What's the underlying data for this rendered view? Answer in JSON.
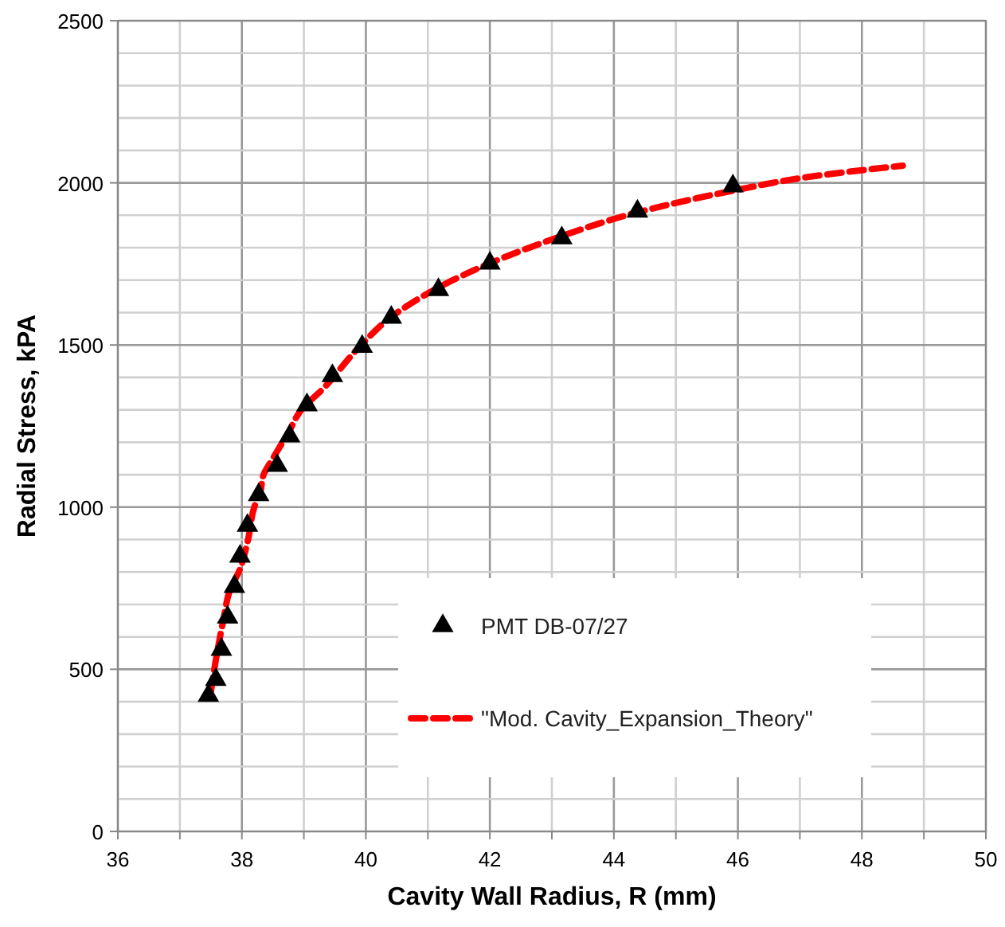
{
  "chart_data": {
    "type": "scatter",
    "xlabel": "Cavity Wall Radius, R (mm)",
    "ylabel": "Radial Stress, kPA",
    "xlim": [
      36,
      50
    ],
    "ylim": [
      0,
      2500
    ],
    "xticks": [
      36,
      {
        "value": 37,
        "label": null
      },
      38,
      {
        "value": 39,
        "label": null
      },
      40,
      {
        "value": 41,
        "label": null
      },
      42,
      {
        "value": 43,
        "label": null
      },
      44,
      {
        "value": 45,
        "label": null
      },
      46,
      {
        "value": 47,
        "label": null
      },
      48,
      {
        "value": 49,
        "label": null
      },
      50
    ],
    "yticks": [
      0,
      {
        "value": 100,
        "label": null
      },
      {
        "value": 200,
        "label": null
      },
      {
        "value": 300,
        "label": null
      },
      {
        "value": 400,
        "label": null
      },
      500,
      {
        "value": 600,
        "label": null
      },
      {
        "value": 700,
        "label": null
      },
      {
        "value": 800,
        "label": null
      },
      {
        "value": 900,
        "label": null
      },
      1000,
      {
        "value": 1100,
        "label": null
      },
      {
        "value": 1200,
        "label": null
      },
      {
        "value": 1300,
        "label": null
      },
      {
        "value": 1400,
        "label": null
      },
      1500,
      {
        "value": 1600,
        "label": null
      },
      {
        "value": 1700,
        "label": null
      },
      {
        "value": 1800,
        "label": null
      },
      {
        "value": 1900,
        "label": null
      },
      2000,
      {
        "value": 2100,
        "label": null
      },
      {
        "value": 2200,
        "label": null
      },
      {
        "value": 2300,
        "label": null
      },
      {
        "value": 2400,
        "label": null
      },
      2500
    ],
    "grid": true,
    "legend": "bottom right",
    "series": [
      {
        "name": "PMT DB-07/27",
        "type": "scatter",
        "marker": "triangle",
        "color": "#000000",
        "x": [
          37.46,
          37.58,
          37.67,
          37.77,
          37.88,
          37.97,
          38.09,
          38.27,
          38.57,
          38.77,
          39.05,
          39.46,
          39.94,
          40.41,
          41.17,
          42.0,
          43.16,
          44.38,
          45.92
        ],
        "values": [
          419,
          468,
          561,
          660,
          755,
          848,
          943,
          1038,
          1128,
          1219,
          1315,
          1405,
          1495,
          1585,
          1670,
          1752,
          1830,
          1912,
          1990
        ]
      },
      {
        "name": "\"Mod. Cavity_Expansion_Theory\"",
        "type": "line",
        "marker": "none",
        "line_style": "dashed",
        "color": "#ff0000",
        "x": [
          37.5,
          37.57,
          37.7,
          37.82,
          37.95,
          38.1,
          38.2,
          38.3,
          38.35,
          38.5,
          38.75,
          39.0,
          39.24,
          39.9,
          40.4,
          41.1,
          42.0,
          43.1,
          44.4,
          45.9,
          47.2,
          48.66
        ],
        "values": [
          430,
          517,
          650,
          750,
          800,
          900,
          1000,
          1050,
          1100,
          1150,
          1230,
          1310,
          1352,
          1495,
          1585,
          1670,
          1752,
          1832,
          1910,
          1975,
          2020,
          2053
        ]
      }
    ]
  }
}
